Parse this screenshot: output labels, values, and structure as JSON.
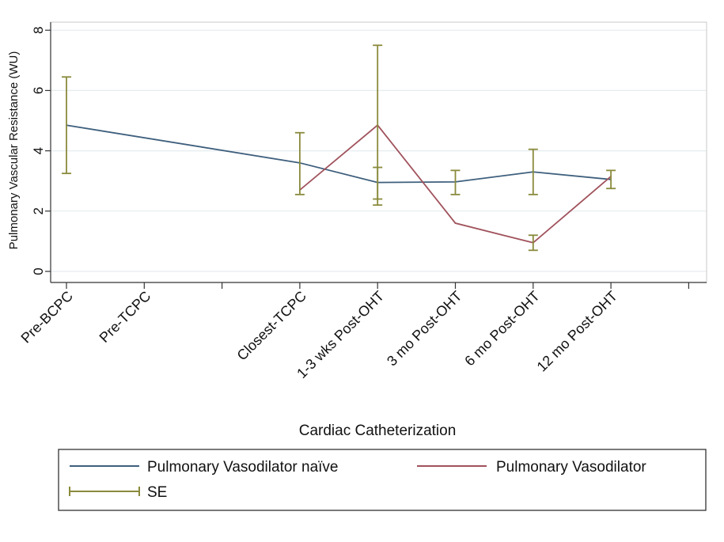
{
  "chart_data": {
    "type": "line",
    "title": "",
    "xlabel": "Cardiac Catheterization",
    "ylabel": "Pulmonary Vascular Resistance (WU)",
    "ylim": [
      0,
      8
    ],
    "yticks": [
      0,
      2,
      4,
      6,
      8
    ],
    "grid": true,
    "categories": [
      "Pre-BCPC",
      "Pre-TCPC",
      "Closest-TCPC",
      "1-3 wks Post-OHT",
      "3 mo Post-OHT",
      "6 mo Post-OHT",
      "12 mo Post-OHT"
    ],
    "x_positions": [
      0,
      1,
      3,
      4,
      5,
      6,
      7
    ],
    "xlim": [
      0,
      8
    ],
    "series": [
      {
        "name": "Pulmonary Vasodilator naïve",
        "color": "#3e5f7d",
        "points": [
          {
            "x": 0,
            "y": 4.85
          },
          {
            "x": 3,
            "y": 3.6
          },
          {
            "x": 4,
            "y": 2.95
          },
          {
            "x": 5,
            "y": 2.97
          },
          {
            "x": 6,
            "y": 3.3
          },
          {
            "x": 7,
            "y": 3.05
          }
        ]
      },
      {
        "name": "Pulmonary Vasodilator",
        "color": "#a0525c",
        "points": [
          {
            "x": 3,
            "y": 2.7
          },
          {
            "x": 4,
            "y": 4.85
          },
          {
            "x": 5,
            "y": 1.6
          },
          {
            "x": 6,
            "y": 0.95
          },
          {
            "x": 7,
            "y": 3.15
          }
        ]
      }
    ],
    "error_bars": {
      "name": "SE",
      "color": "#8a8a3c",
      "bars": [
        {
          "x": 0,
          "low": 3.25,
          "high": 6.45
        },
        {
          "x": 3,
          "low": 2.55,
          "high": 4.6
        },
        {
          "x": 4,
          "low": 2.2,
          "high": 7.5
        },
        {
          "x": 4,
          "low": 2.4,
          "high": 3.45
        },
        {
          "x": 5,
          "low": 2.55,
          "high": 3.35
        },
        {
          "x": 6,
          "low": 2.55,
          "high": 4.05
        },
        {
          "x": 6,
          "low": 0.7,
          "high": 1.2
        },
        {
          "x": 7,
          "low": 2.75,
          "high": 3.35
        }
      ]
    },
    "legend": {
      "placement": "bottom",
      "entries": [
        "Pulmonary Vasodilator naïve",
        "Pulmonary Vasodilator",
        "SE"
      ]
    }
  }
}
